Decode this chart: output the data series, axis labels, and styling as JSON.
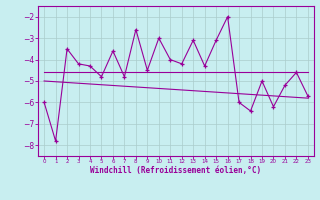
{
  "xlabel": "Windchill (Refroidissement éolien,°C)",
  "bg_color": "#c8eef0",
  "line_color": "#990099",
  "grid_color": "#aacccc",
  "xlim": [
    -0.5,
    23.5
  ],
  "ylim": [
    -8.5,
    -1.5
  ],
  "xticks": [
    0,
    1,
    2,
    3,
    4,
    5,
    6,
    7,
    8,
    9,
    10,
    11,
    12,
    13,
    14,
    15,
    16,
    17,
    18,
    19,
    20,
    21,
    22,
    23
  ],
  "yticks": [
    -8,
    -7,
    -6,
    -5,
    -4,
    -3,
    -2
  ],
  "scatter_x": [
    0,
    1,
    2,
    3,
    4,
    5,
    6,
    7,
    8,
    9,
    10,
    11,
    12,
    13,
    14,
    15,
    16,
    17,
    18,
    19,
    20,
    21,
    22,
    23
  ],
  "scatter_y": [
    -6.0,
    -7.8,
    -3.5,
    -4.2,
    -4.3,
    -4.8,
    -3.6,
    -4.8,
    -2.6,
    -4.5,
    -3.0,
    -4.0,
    -4.2,
    -3.1,
    -4.3,
    -3.1,
    -2.0,
    -6.0,
    -6.4,
    -5.0,
    -6.2,
    -5.2,
    -4.6,
    -5.7
  ],
  "trend1_x": [
    0,
    16,
    23
  ],
  "trend1_y": [
    -4.6,
    -4.6,
    -4.6
  ],
  "trend2_x": [
    0,
    23
  ],
  "trend2_y": [
    -5.0,
    -5.8
  ]
}
